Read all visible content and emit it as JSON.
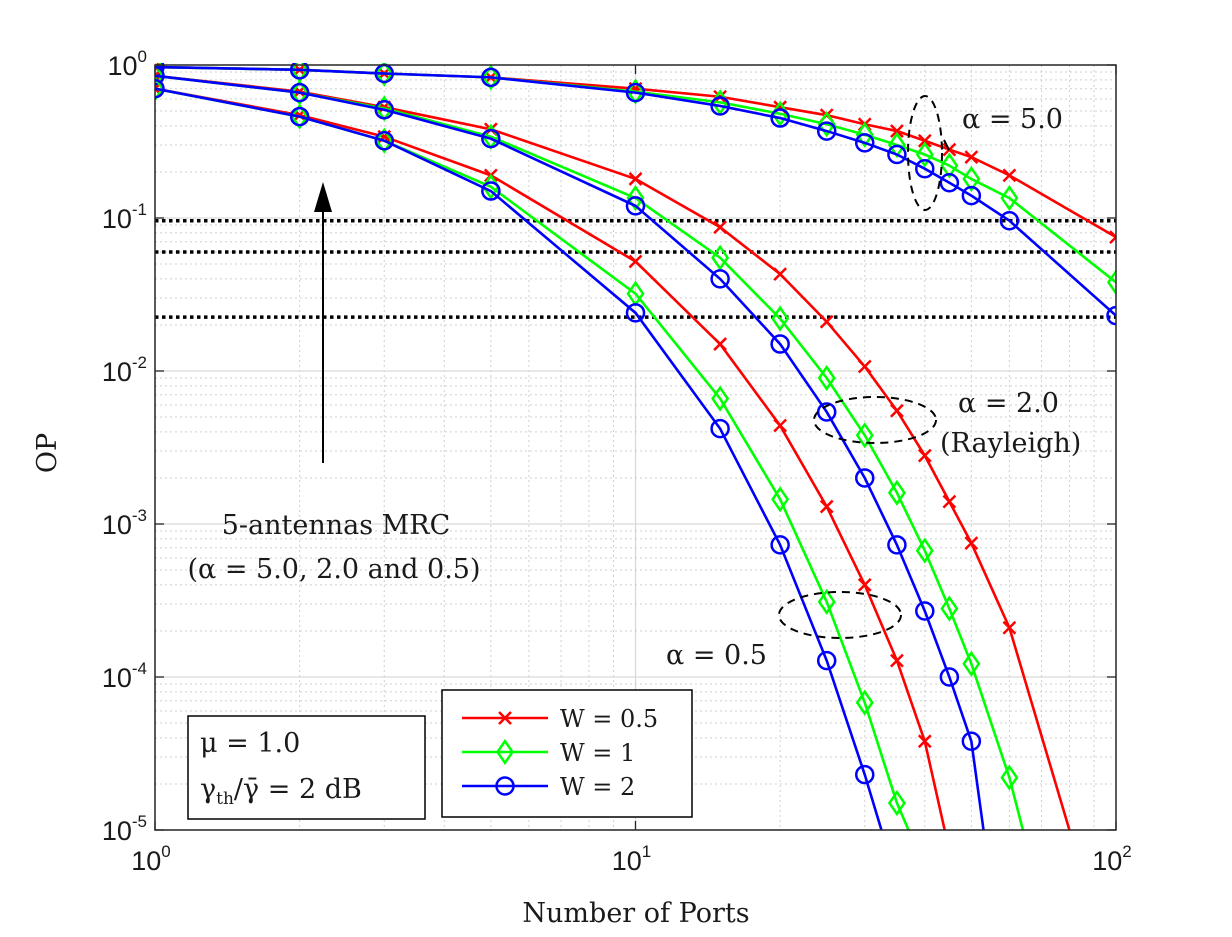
{
  "chart_data": {
    "type": "line",
    "xlabel": "Number of Ports",
    "ylabel": "OP",
    "x_scale": "log",
    "y_scale": "log",
    "xlim": [
      1,
      100
    ],
    "ylim": [
      1e-05,
      1
    ],
    "x_ticks": [
      {
        "value": 1,
        "base": "10",
        "exp": "0"
      },
      {
        "value": 10,
        "base": "10",
        "exp": "1"
      },
      {
        "value": 100,
        "base": "10",
        "exp": "2"
      }
    ],
    "y_ticks": [
      {
        "value": 1,
        "base": "10",
        "exp": "0"
      },
      {
        "value": 0.1,
        "base": "10",
        "exp": "-1"
      },
      {
        "value": 0.01,
        "base": "10",
        "exp": "-2"
      },
      {
        "value": 0.001,
        "base": "10",
        "exp": "-3"
      },
      {
        "value": 0.0001,
        "base": "10",
        "exp": "-4"
      },
      {
        "value": 1e-05,
        "base": "10",
        "exp": "-5"
      }
    ],
    "grid": true,
    "minor_grid": true,
    "legend_position": "bottom-center",
    "legend": [
      {
        "label": "W = 0.5",
        "color": "#ff0000",
        "marker": "x"
      },
      {
        "label": "W = 1",
        "color": "#00ff00",
        "marker": "diamond"
      },
      {
        "label": "W = 2",
        "color": "#0000ff",
        "marker": "circle"
      }
    ],
    "series": [
      {
        "W": "0.5",
        "alpha": "5.0",
        "color": "#ff0000",
        "marker": "x",
        "x": [
          1,
          2,
          3,
          5,
          10,
          15,
          20,
          25,
          30,
          35,
          40,
          45,
          50,
          60,
          100
        ],
        "y": [
          0.97,
          0.93,
          0.88,
          0.83,
          0.7,
          0.62,
          0.53,
          0.47,
          0.41,
          0.37,
          0.32,
          0.28,
          0.25,
          0.19,
          0.075
        ]
      },
      {
        "W": "1",
        "alpha": "5.0",
        "color": "#00ff00",
        "marker": "diamond",
        "x": [
          1,
          2,
          3,
          5,
          10,
          15,
          20,
          25,
          30,
          35,
          40,
          45,
          50,
          60,
          100
        ],
        "y": [
          0.97,
          0.93,
          0.88,
          0.83,
          0.67,
          0.57,
          0.48,
          0.41,
          0.35,
          0.3,
          0.26,
          0.22,
          0.18,
          0.135,
          0.038
        ]
      },
      {
        "W": "2",
        "alpha": "5.0",
        "color": "#0000ff",
        "marker": "circle",
        "x": [
          1,
          2,
          3,
          5,
          10,
          15,
          20,
          25,
          30,
          35,
          40,
          45,
          50,
          60,
          100
        ],
        "y": [
          0.97,
          0.93,
          0.88,
          0.83,
          0.66,
          0.54,
          0.45,
          0.37,
          0.31,
          0.26,
          0.21,
          0.17,
          0.14,
          0.096,
          0.023
        ]
      },
      {
        "W": "0.5",
        "alpha": "2.0",
        "color": "#ff0000",
        "marker": "x",
        "x": [
          1,
          2,
          3,
          5,
          10,
          15,
          20,
          25,
          30,
          35,
          40,
          45,
          50,
          60,
          80
        ],
        "y": [
          0.85,
          0.67,
          0.53,
          0.38,
          0.18,
          0.087,
          0.043,
          0.021,
          0.0107,
          0.0055,
          0.0028,
          0.0014,
          0.00075,
          0.00021,
          1e-05
        ]
      },
      {
        "W": "1",
        "alpha": "2.0",
        "color": "#00ff00",
        "marker": "diamond",
        "x": [
          1,
          2,
          3,
          5,
          10,
          15,
          20,
          25,
          30,
          35,
          40,
          45,
          50,
          60,
          64
        ],
        "y": [
          0.85,
          0.66,
          0.52,
          0.34,
          0.135,
          0.055,
          0.022,
          0.009,
          0.0038,
          0.0016,
          0.00067,
          0.00028,
          0.000122,
          2.2e-05,
          1e-05
        ]
      },
      {
        "W": "2",
        "alpha": "2.0",
        "color": "#0000ff",
        "marker": "circle",
        "x": [
          1,
          2,
          3,
          5,
          10,
          15,
          20,
          25,
          30,
          35,
          40,
          45,
          50,
          53
        ],
        "y": [
          0.85,
          0.66,
          0.51,
          0.33,
          0.12,
          0.04,
          0.015,
          0.0054,
          0.002,
          0.00073,
          0.00027,
          0.0001,
          3.8e-05,
          1e-05
        ]
      },
      {
        "W": "0.5",
        "alpha": "0.5",
        "color": "#ff0000",
        "marker": "x",
        "x": [
          1,
          2,
          3,
          5,
          10,
          15,
          20,
          25,
          30,
          35,
          40,
          44
        ],
        "y": [
          0.7,
          0.47,
          0.34,
          0.19,
          0.052,
          0.015,
          0.0044,
          0.0013,
          0.0004,
          0.000128,
          3.8e-05,
          1e-05
        ]
      },
      {
        "W": "1",
        "alpha": "0.5",
        "color": "#00ff00",
        "marker": "diamond",
        "x": [
          1,
          2,
          3,
          5,
          10,
          15,
          20,
          25,
          30,
          35,
          37
        ],
        "y": [
          0.7,
          0.46,
          0.32,
          0.16,
          0.032,
          0.0066,
          0.00145,
          0.00031,
          6.8e-05,
          1.5e-05,
          1e-05
        ]
      },
      {
        "W": "2",
        "alpha": "0.5",
        "color": "#0000ff",
        "marker": "circle",
        "x": [
          1,
          2,
          3,
          5,
          10,
          15,
          20,
          25,
          30,
          32.5
        ],
        "y": [
          0.7,
          0.46,
          0.32,
          0.15,
          0.024,
          0.0042,
          0.00073,
          0.000128,
          2.3e-05,
          1e-05
        ]
      }
    ],
    "reference_lines": [
      {
        "y": 0.096,
        "style": "dotted",
        "color": "#000000"
      },
      {
        "y": 0.06,
        "style": "dotted",
        "color": "#000000"
      },
      {
        "y": 0.0225,
        "style": "dotted",
        "color": "#000000"
      }
    ],
    "annotations": {
      "alpha5": "α = 5.0",
      "alpha2": "α = 2.0",
      "rayleigh": "(Rayleigh)",
      "alpha05": "α = 0.5",
      "mrc_line1": "5-antennas MRC",
      "mrc_line2": "(α = 5.0, 2.0 and 0.5)",
      "param_mu": "μ = 1.0",
      "param_gamma_main": "γ",
      "param_gamma_sub": "th",
      "param_gamma_rest": "/γ̄ = 2 dB"
    }
  }
}
